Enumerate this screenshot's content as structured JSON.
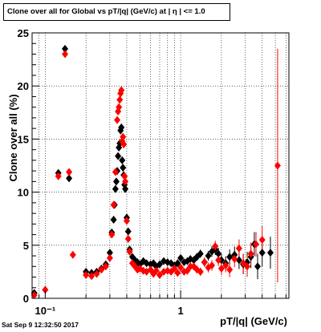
{
  "chart_data": {
    "type": "scatter",
    "title": "Clone  over all for Global vs pT/|q| (GeV/c) at |  η | <= 1.0",
    "xlabel": "pT/|q| (GeV/c)",
    "ylabel": "Clone  over all (%)",
    "x_scale": "log",
    "xlim": [
      0.08,
      6.3
    ],
    "ylim": [
      0,
      25
    ],
    "x_tick_labels": [
      "10⁻¹",
      "1"
    ],
    "y_tick_labels": [
      "0",
      "5",
      "10",
      "15",
      "20",
      "25"
    ],
    "grid": true,
    "marker": "diamond",
    "series": [
      {
        "color": "#000000",
        "points": [
          [
            0.083,
            0.5
          ],
          [
            0.125,
            11.8
          ],
          [
            0.14,
            23.5
          ],
          [
            0.15,
            11.3
          ],
          [
            0.2,
            2.5
          ],
          [
            0.22,
            2.4
          ],
          [
            0.24,
            2.5
          ],
          [
            0.26,
            2.8
          ],
          [
            0.28,
            3.2
          ],
          [
            0.3,
            4.3
          ],
          [
            0.31,
            6.2
          ],
          [
            0.32,
            7.4
          ],
          [
            0.325,
            8.8
          ],
          [
            0.33,
            10.3
          ],
          [
            0.335,
            11.0
          ],
          [
            0.34,
            12.0
          ],
          [
            0.345,
            13.4
          ],
          [
            0.35,
            14.2
          ],
          [
            0.355,
            14.6
          ],
          [
            0.36,
            15.8
          ],
          [
            0.365,
            16.1
          ],
          [
            0.37,
            13.0
          ],
          [
            0.375,
            12.3
          ],
          [
            0.38,
            11.6
          ],
          [
            0.385,
            10.7
          ],
          [
            0.39,
            10.3
          ],
          [
            0.4,
            7.6
          ],
          [
            0.41,
            6.3
          ],
          [
            0.42,
            4.6
          ],
          [
            0.44,
            3.9
          ],
          [
            0.46,
            3.6
          ],
          [
            0.48,
            3.4
          ],
          [
            0.5,
            3.2
          ],
          [
            0.53,
            3.5
          ],
          [
            0.56,
            3.3
          ],
          [
            0.6,
            3.2
          ],
          [
            0.63,
            3.3
          ],
          [
            0.66,
            3.0
          ],
          [
            0.7,
            3.2
          ],
          [
            0.75,
            3.5
          ],
          [
            0.8,
            3.4
          ],
          [
            0.85,
            3.3
          ],
          [
            0.9,
            3.1
          ],
          [
            0.95,
            3.3
          ],
          [
            1.0,
            3.8
          ],
          [
            1.06,
            3.4
          ],
          [
            1.12,
            3.5
          ],
          [
            1.18,
            3.7
          ],
          [
            1.25,
            3.6
          ],
          [
            1.32,
            3.9
          ],
          [
            1.4,
            4.2
          ],
          [
            1.5,
            3.4
          ],
          [
            1.6,
            4.0
          ],
          [
            1.7,
            4.4
          ],
          [
            1.8,
            4.6
          ],
          [
            1.9,
            4.2
          ],
          [
            2.0,
            3.6
          ],
          [
            2.15,
            3.3
          ],
          [
            2.3,
            3.9
          ],
          [
            2.5,
            4.1
          ],
          [
            2.7,
            3.6
          ],
          [
            2.9,
            3.2
          ],
          [
            3.1,
            3.4
          ],
          [
            3.3,
            3.9
          ],
          [
            3.5,
            5.1
          ],
          [
            3.7,
            3.0
          ],
          [
            4.0,
            4.3
          ],
          [
            4.6,
            4.3
          ]
        ]
      },
      {
        "color": "#ff0000",
        "points": [
          [
            0.083,
            0.3
          ],
          [
            0.1,
            0.8
          ],
          [
            0.125,
            11.5
          ],
          [
            0.14,
            23.0
          ],
          [
            0.15,
            11.9
          ],
          [
            0.16,
            4.1
          ],
          [
            0.2,
            2.2
          ],
          [
            0.22,
            2.1
          ],
          [
            0.24,
            2.3
          ],
          [
            0.26,
            2.7
          ],
          [
            0.28,
            3.0
          ],
          [
            0.3,
            3.8
          ],
          [
            0.31,
            6.0
          ],
          [
            0.32,
            8.8
          ],
          [
            0.33,
            11.9
          ],
          [
            0.34,
            16.8
          ],
          [
            0.345,
            17.6
          ],
          [
            0.35,
            18.0
          ],
          [
            0.355,
            18.7
          ],
          [
            0.36,
            19.3
          ],
          [
            0.365,
            19.6
          ],
          [
            0.37,
            14.8
          ],
          [
            0.375,
            15.2
          ],
          [
            0.38,
            14.5
          ],
          [
            0.385,
            11.5
          ],
          [
            0.39,
            11.0
          ],
          [
            0.4,
            7.3
          ],
          [
            0.41,
            5.6
          ],
          [
            0.42,
            4.4
          ],
          [
            0.44,
            3.3
          ],
          [
            0.46,
            3.0
          ],
          [
            0.48,
            2.7
          ],
          [
            0.5,
            2.8
          ],
          [
            0.53,
            2.6
          ],
          [
            0.56,
            2.5
          ],
          [
            0.6,
            2.7
          ],
          [
            0.63,
            2.3
          ],
          [
            0.66,
            2.6
          ],
          [
            0.7,
            2.2
          ],
          [
            0.75,
            2.5
          ],
          [
            0.8,
            2.6
          ],
          [
            0.85,
            2.5
          ],
          [
            0.9,
            2.8
          ],
          [
            0.95,
            2.4
          ],
          [
            1.0,
            2.9
          ],
          [
            1.06,
            2.5
          ],
          [
            1.12,
            2.6
          ],
          [
            1.18,
            3.0
          ],
          [
            1.25,
            3.0
          ],
          [
            1.32,
            2.7
          ],
          [
            1.4,
            2.5
          ],
          [
            1.5,
            3.4
          ],
          [
            1.6,
            2.9
          ],
          [
            1.7,
            3.1
          ],
          [
            1.8,
            4.9
          ],
          [
            1.9,
            3.6
          ],
          [
            2.0,
            2.8
          ],
          [
            2.15,
            3.1
          ],
          [
            2.3,
            2.7
          ],
          [
            2.5,
            3.7
          ],
          [
            2.7,
            4.7
          ],
          [
            2.9,
            3.3
          ],
          [
            3.1,
            3.0
          ],
          [
            3.3,
            4.2
          ],
          [
            3.6,
            5.1
          ],
          [
            4.0,
            5.5
          ],
          [
            5.2,
            12.5
          ]
        ]
      }
    ]
  },
  "footer": {
    "timestamp": "Sat Sep  9 12:32:50 2017"
  }
}
